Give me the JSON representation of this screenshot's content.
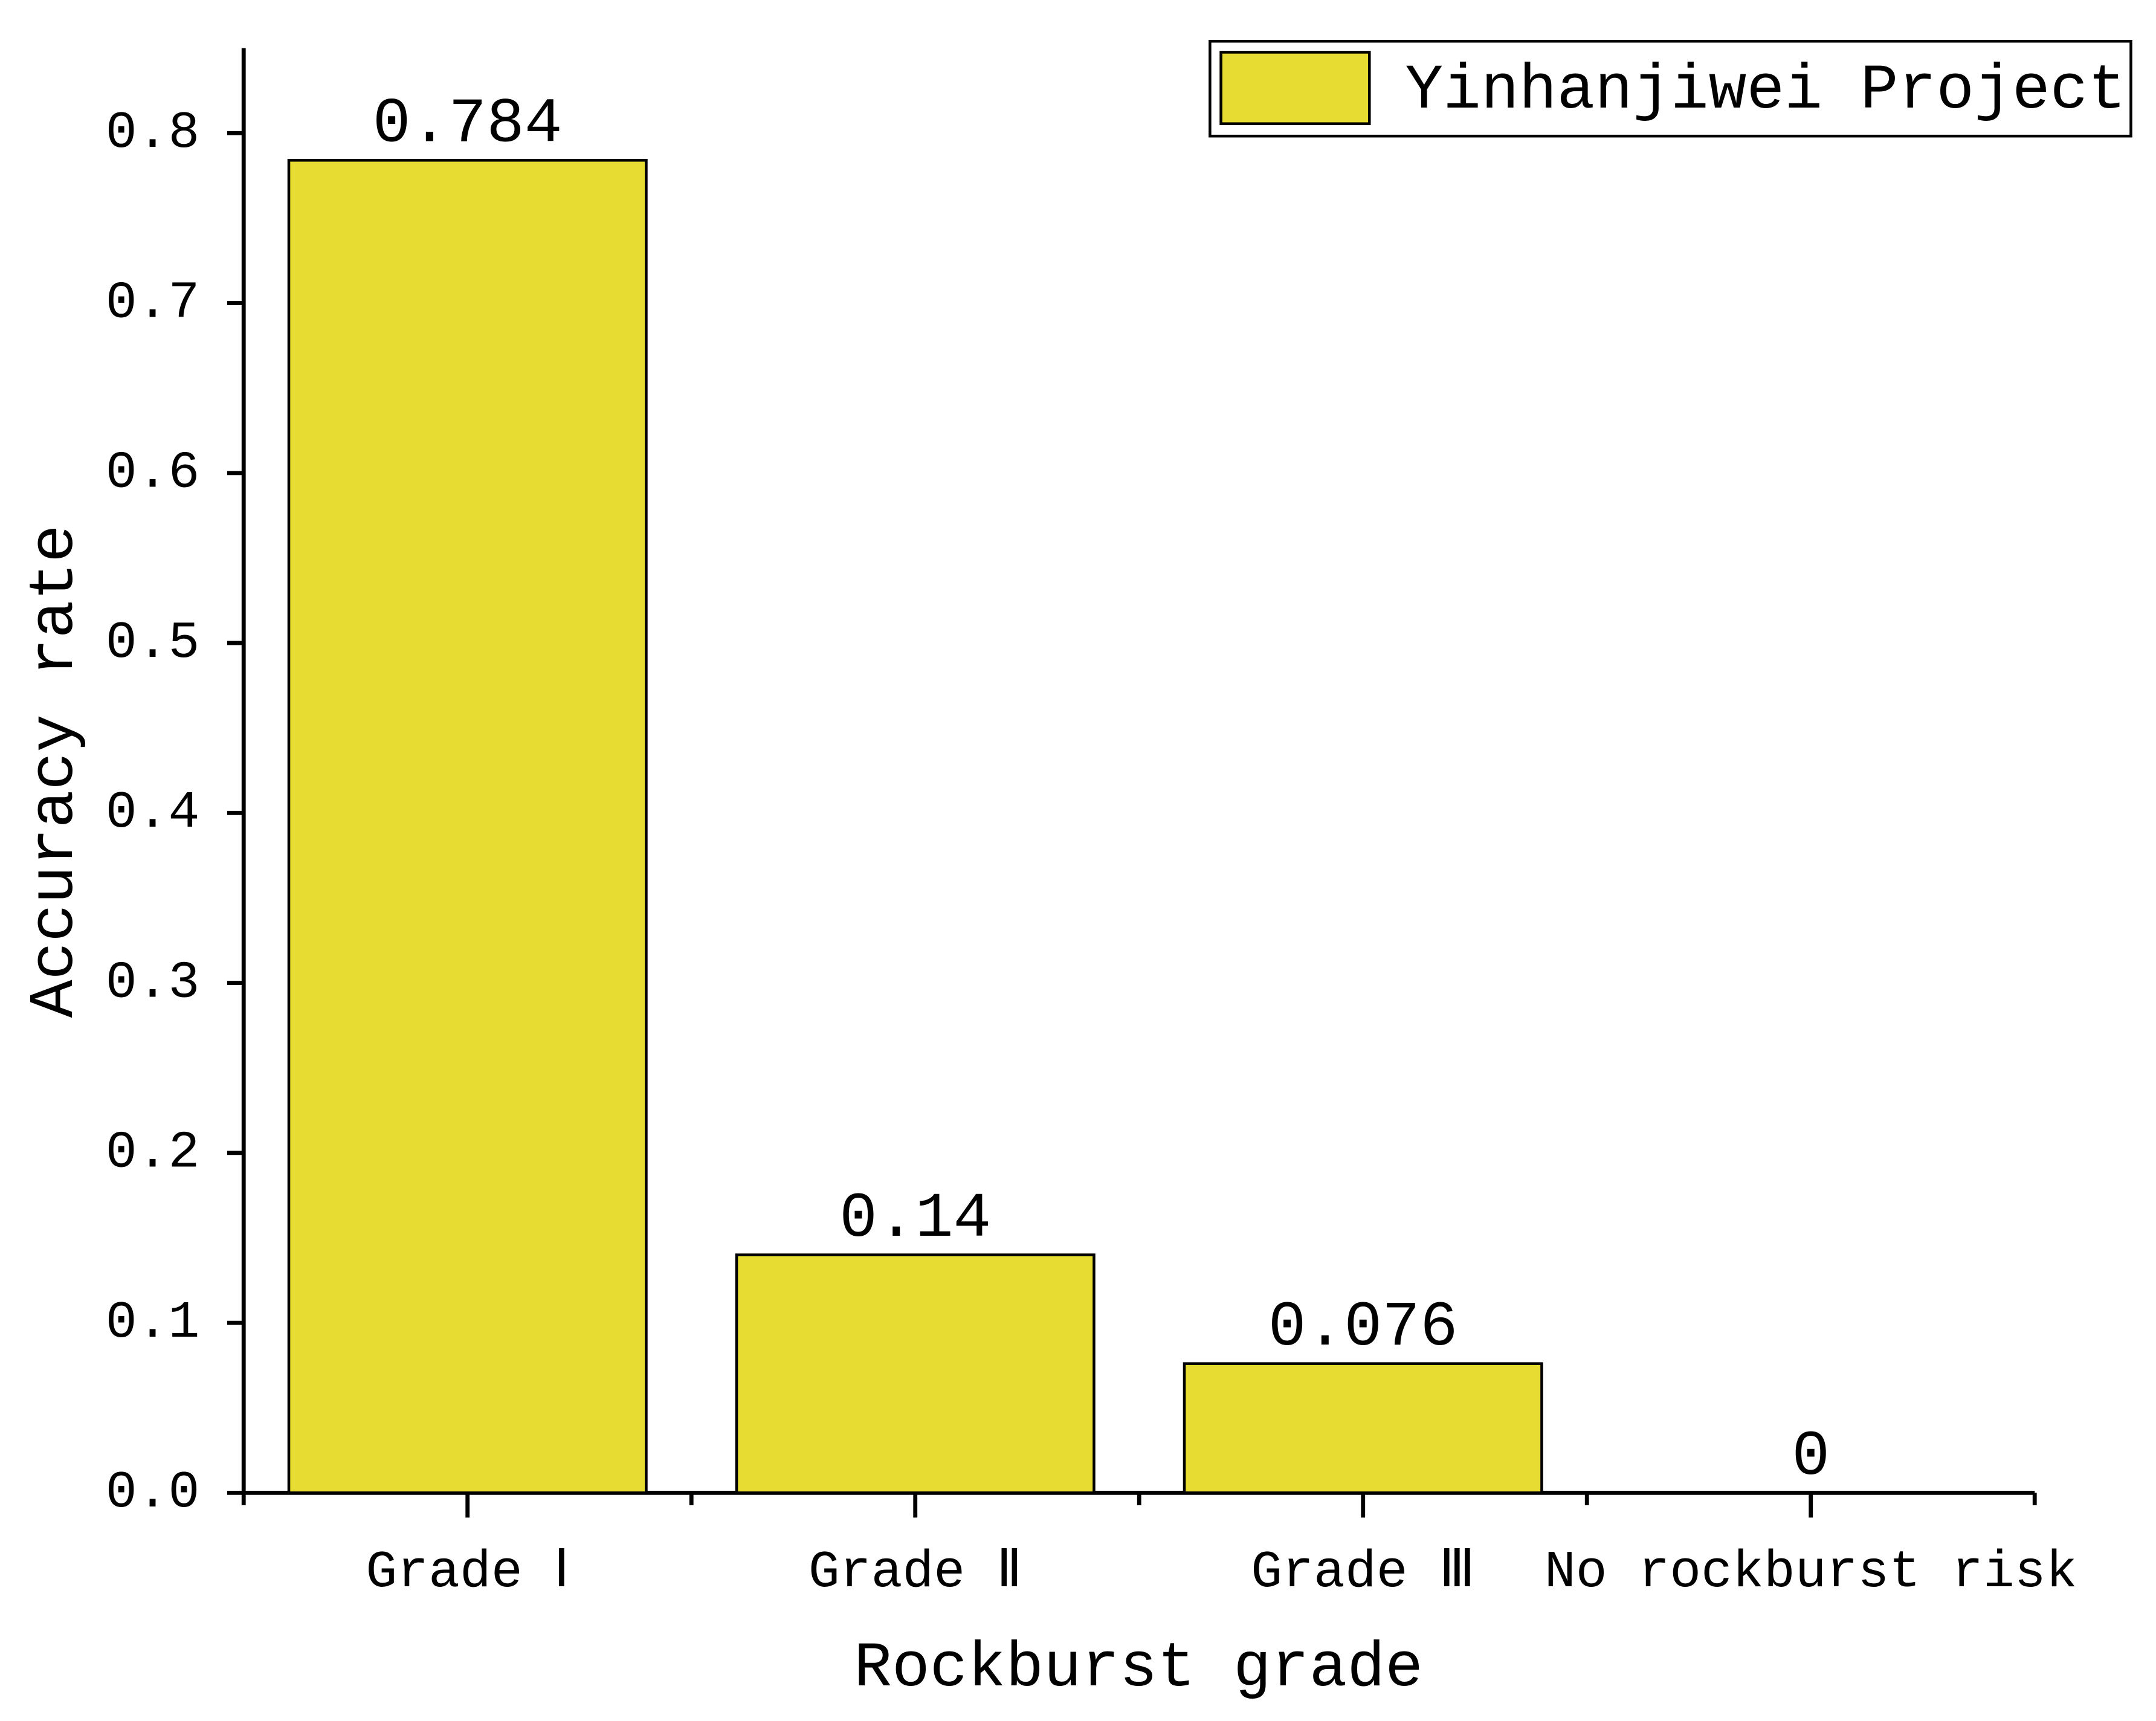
{
  "chart_data": {
    "type": "bar",
    "x_label": "Rockburst grade",
    "y_label": "Accuracy rate",
    "categories": [
      "Grade Ⅰ",
      "Grade Ⅱ",
      "Grade Ⅲ",
      "No rockburst risk"
    ],
    "series": [
      {
        "name": "Yinhanjiwei Project",
        "color": "#e6dc32",
        "values": [
          0.784,
          0.14,
          0.076,
          0
        ]
      }
    ],
    "ylim": [
      0,
      0.85
    ],
    "yticks": [
      {
        "value": 0,
        "label": "0.0"
      },
      0.1,
      0.2,
      0.3,
      0.4,
      0.5,
      0.6,
      0.7,
      0.8
    ],
    "legend": "top-right"
  }
}
